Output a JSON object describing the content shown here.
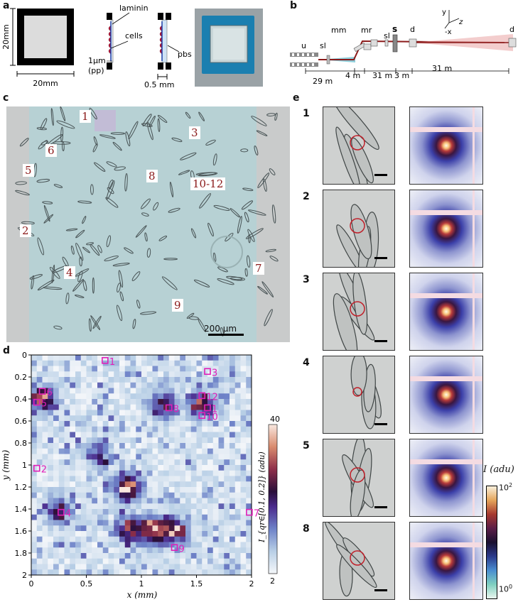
{
  "panels": {
    "a": {
      "letter": "a",
      "dim_vertical": "20mm",
      "dim_horizontal": "20mm",
      "laminin": "laminin",
      "cells": "cells",
      "pp": "1μm\n(pp)",
      "pp_line1": "1μm",
      "pp_line2": "(pp)",
      "pbs": "pbs",
      "gap": "0.5 mm"
    },
    "b": {
      "letter": "b",
      "labels": {
        "u": "u",
        "sl1": "sl",
        "mm": "mm",
        "mr": "mr",
        "sl2": "sl",
        "s": "s",
        "d1": "d",
        "d2": "d"
      },
      "axes": {
        "y": "y",
        "z": "z",
        "x": "-x"
      },
      "distances": [
        "29 m",
        "4 m",
        "31 m",
        "3 m",
        "31 m"
      ]
    },
    "c": {
      "letter": "c",
      "scalebar": "200 μm",
      "markers": [
        "1",
        "3",
        "6",
        "5",
        "8",
        "10-12",
        "2",
        "4",
        "7",
        "9"
      ]
    },
    "d": {
      "letter": "d",
      "xlabel": "x (mm)",
      "ylabel": "y (mm)",
      "colorbar_label": "I_{qr∈[0.1, 0.2]} (adu)",
      "colorbar_max": "40",
      "colorbar_min": "2"
    },
    "e": {
      "letter": "e",
      "rows": [
        "1",
        "2",
        "3",
        "4",
        "5",
        "8"
      ],
      "colorbar_label": "I (adu)",
      "cb_top_base": "10",
      "cb_top_exp": "2",
      "cb_bot_base": "10",
      "cb_bot_exp": "0"
    }
  },
  "chart_data": {
    "type": "heatmap",
    "xlabel": "x (mm)",
    "ylabel": "y (mm)",
    "xlim": [
      0,
      2
    ],
    "ylim": [
      2,
      0
    ],
    "xticks": [
      "0",
      "0.5",
      "1",
      "1.5",
      "2"
    ],
    "yticks": [
      "0",
      "0.2",
      "0.4",
      "0.6",
      "0.8",
      "1",
      "1.2",
      "1.4",
      "1.6",
      "1.8",
      "2"
    ],
    "colorbar": {
      "label": "I_{qr∈[0.1, 0.2]} (adu)",
      "min": 2,
      "max": 40
    },
    "grid": {
      "cols": 40,
      "rows": 40,
      "cell_mm": 0.05
    },
    "hotspots": [
      {
        "x": 0.87,
        "y": 1.2,
        "value": 38
      },
      {
        "x": 1.1,
        "y": 1.6,
        "value": 40
      },
      {
        "x": 1.3,
        "y": 1.6,
        "value": 36
      },
      {
        "x": 0.9,
        "y": 1.6,
        "value": 30
      },
      {
        "x": 0.1,
        "y": 0.4,
        "value": 34
      },
      {
        "x": 1.2,
        "y": 0.45,
        "value": 28
      },
      {
        "x": 1.55,
        "y": 0.45,
        "value": 26
      },
      {
        "x": 0.6,
        "y": 0.9,
        "value": 20
      },
      {
        "x": 0.25,
        "y": 1.4,
        "value": 24
      }
    ],
    "markers": [
      {
        "label": "1",
        "x": 0.67,
        "y": 0.05
      },
      {
        "label": "3",
        "x": 1.6,
        "y": 0.15
      },
      {
        "label": "6",
        "x": 0.1,
        "y": 0.33
      },
      {
        "label": "5",
        "x": 0.05,
        "y": 0.43
      },
      {
        "label": "12",
        "x": 1.55,
        "y": 0.37
      },
      {
        "label": "8",
        "x": 1.25,
        "y": 0.48
      },
      {
        "label": "1",
        "x": 1.6,
        "y": 0.48
      },
      {
        "label": "10",
        "x": 1.55,
        "y": 0.55
      },
      {
        "label": "2",
        "x": 0.05,
        "y": 1.03
      },
      {
        "label": "4",
        "x": 0.27,
        "y": 1.43
      },
      {
        "label": "7",
        "x": 1.98,
        "y": 1.43
      },
      {
        "label": "9",
        "x": 1.3,
        "y": 1.75
      }
    ]
  }
}
